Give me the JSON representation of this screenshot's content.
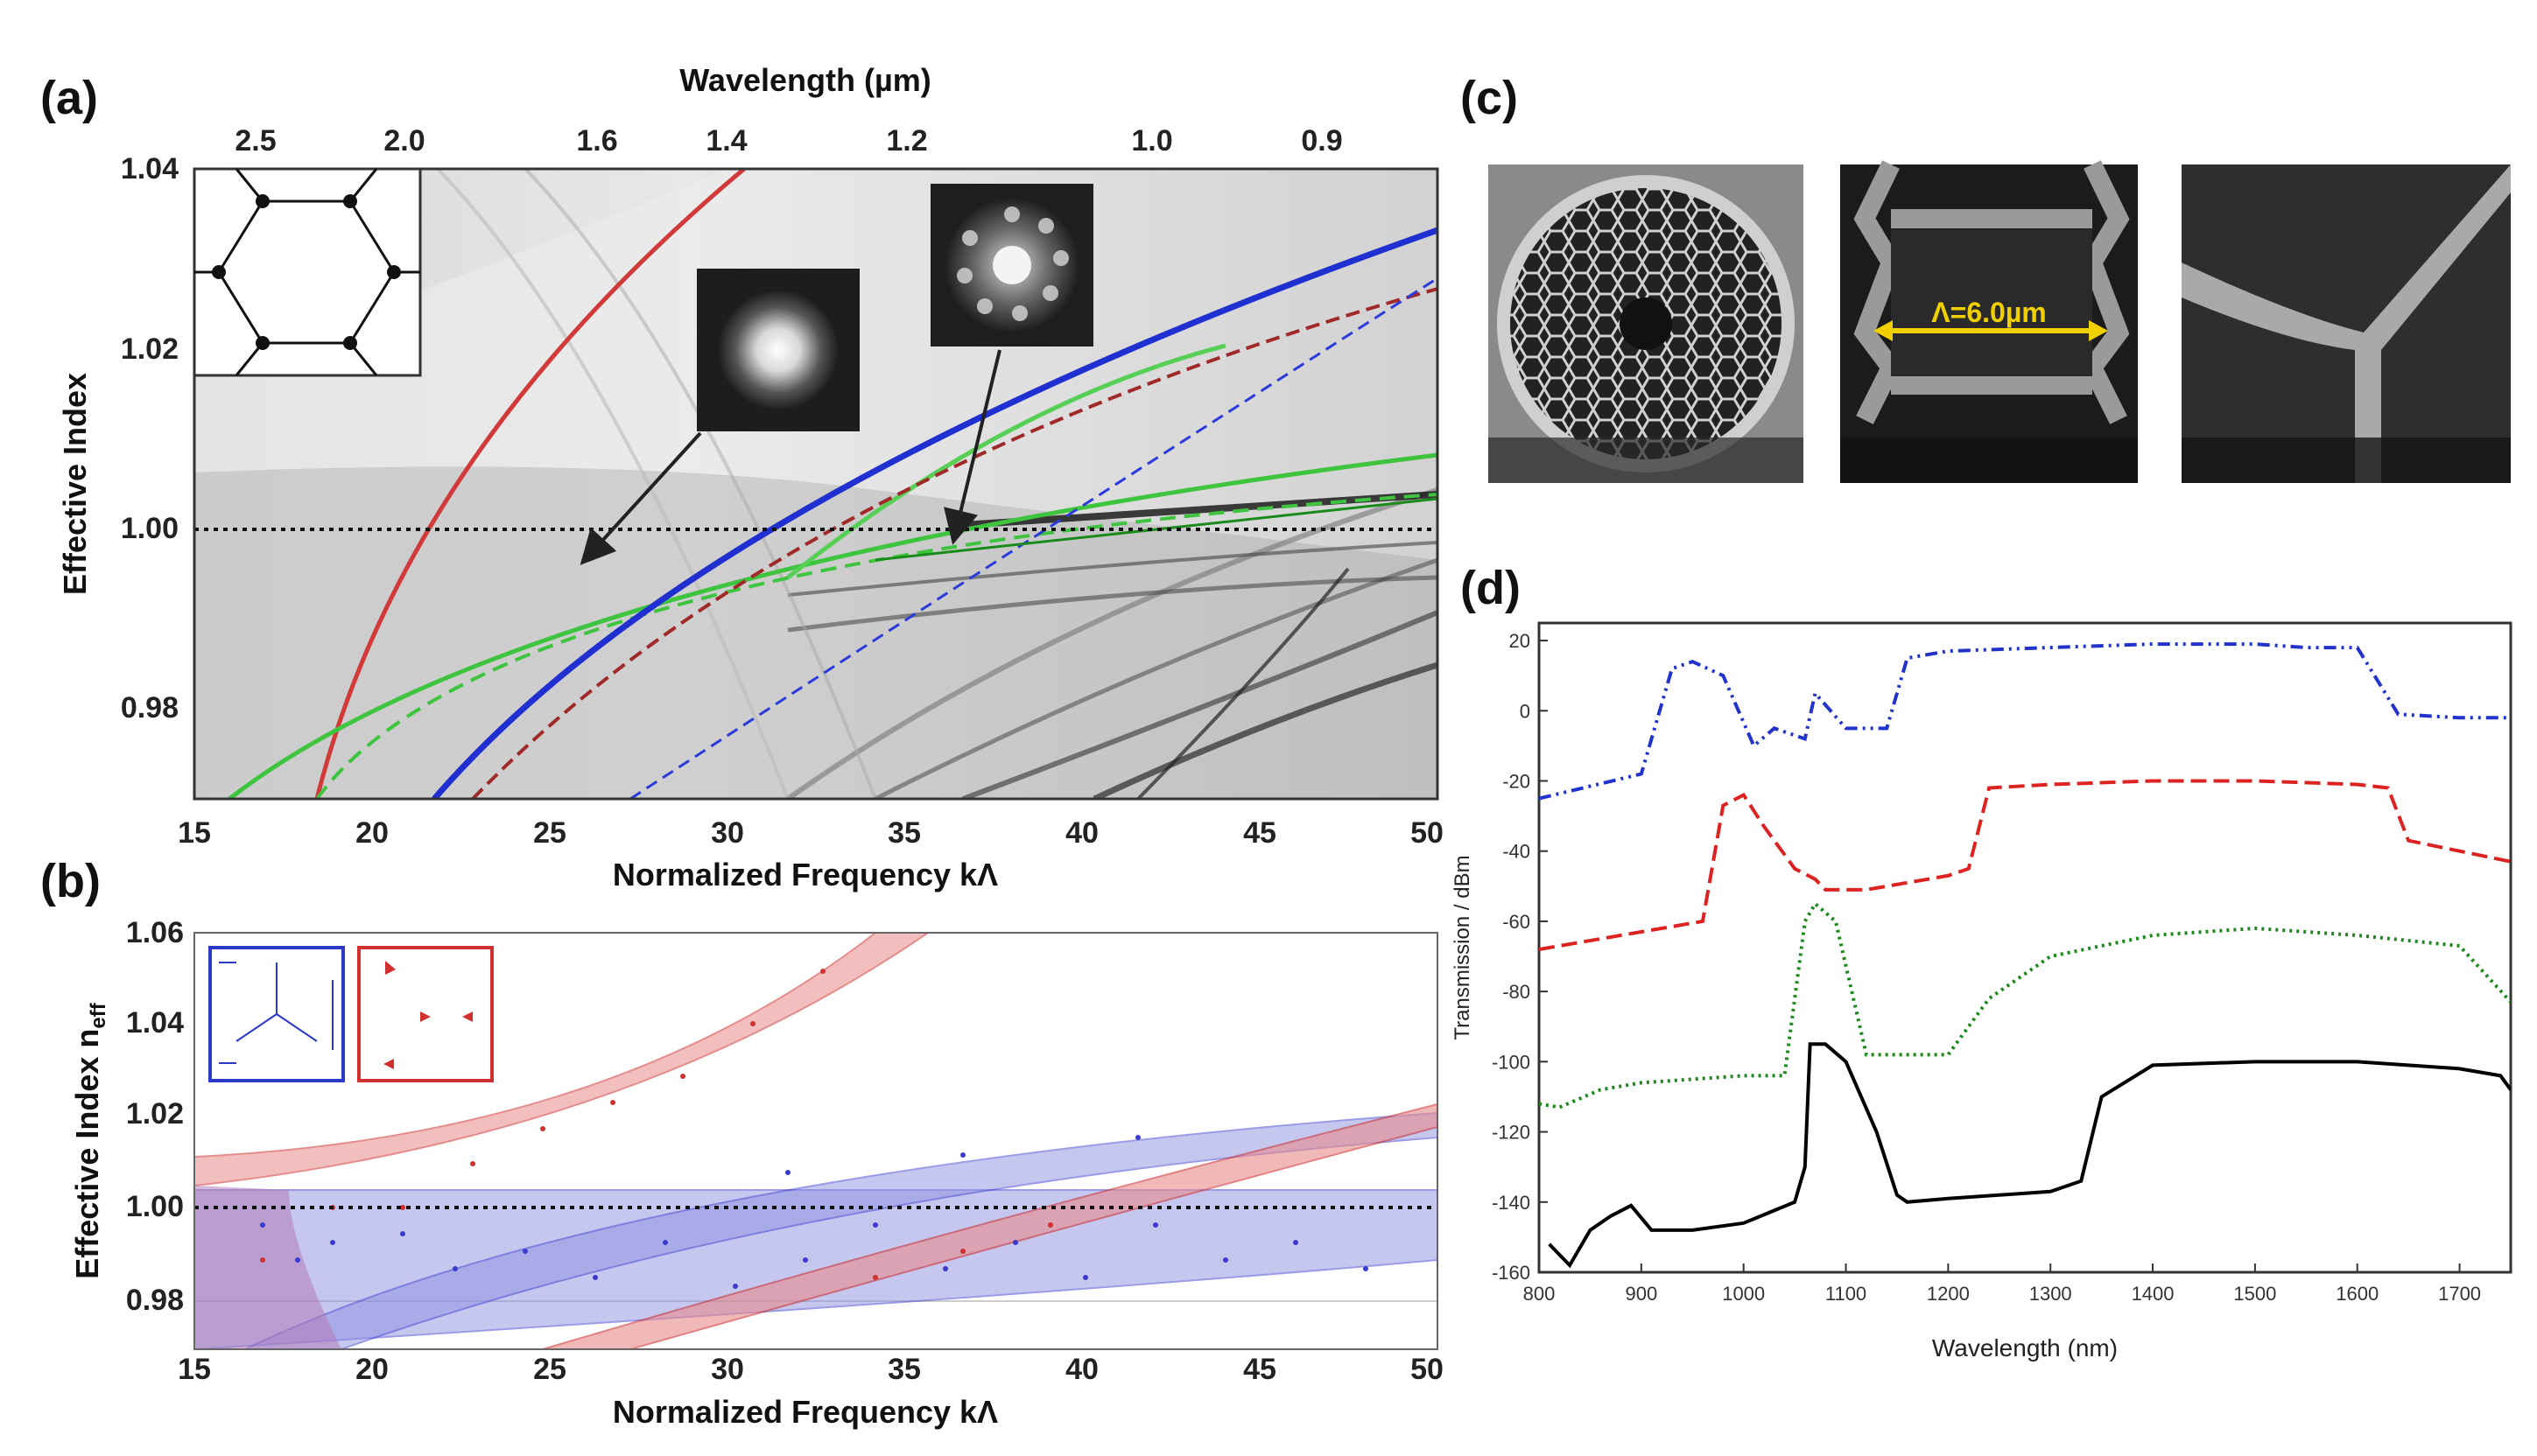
{
  "panels": {
    "a": "(a)",
    "b": "(b)",
    "c": "(c)",
    "d": "(d)"
  },
  "panel_a": {
    "top_axis_label": "Wavelength (µm)",
    "top_ticks": [
      "2.5",
      "2.0",
      "1.6",
      "1.4",
      "1.2",
      "1.0",
      "0.9"
    ],
    "ylabel": "Effective Index",
    "xlabel": "Normalized Frequency kΛ",
    "yticks": [
      "1.04",
      "1.02",
      "1.00",
      "0.98"
    ],
    "xticks": [
      "15",
      "20",
      "25",
      "30",
      "35",
      "40",
      "45",
      "50"
    ]
  },
  "panel_b": {
    "ylabel": "Effective Index n",
    "ylabel_sub": "eff",
    "xlabel": "Normalized Frequency kΛ",
    "yticks": [
      "1.06",
      "1.04",
      "1.02",
      "1.00",
      "0.98"
    ],
    "xticks": [
      "15",
      "20",
      "25",
      "30",
      "35",
      "40",
      "45",
      "50"
    ]
  },
  "panel_c": {
    "scale_label": "Λ=6.0µm"
  },
  "chart_data": [
    {
      "type": "line",
      "title": "(d)",
      "xlabel": "Wavelength (nm)",
      "ylabel": "Transmission / dBm",
      "xlim": [
        800,
        1750
      ],
      "ylim": [
        -160,
        25
      ],
      "xticks": [
        "800",
        "900",
        "1000",
        "1100",
        "1200",
        "1300",
        "1400",
        "1500",
        "1600",
        "1700"
      ],
      "yticks": [
        "20",
        "0",
        "-20",
        "-40",
        "-60",
        "-80",
        "-100",
        "-120",
        "-140",
        "-160"
      ],
      "series": [
        {
          "name": "blue",
          "color": "#2233cc",
          "x": [
            800,
            900,
            930,
            950,
            980,
            1010,
            1030,
            1060,
            1070,
            1100,
            1140,
            1160,
            1200,
            1300,
            1400,
            1500,
            1550,
            1600,
            1640,
            1700,
            1750
          ],
          "y": [
            -25,
            -18,
            12,
            14,
            10,
            -10,
            -5,
            -8,
            5,
            -5,
            -5,
            15,
            17,
            18,
            19,
            19,
            18,
            18,
            -1,
            -2,
            -2
          ]
        },
        {
          "name": "red",
          "color": "#dd2222",
          "x": [
            800,
            960,
            980,
            1000,
            1020,
            1050,
            1070,
            1080,
            1120,
            1200,
            1220,
            1240,
            1300,
            1400,
            1500,
            1600,
            1630,
            1650,
            1700,
            1750
          ],
          "y": [
            -68,
            -60,
            -27,
            -24,
            -33,
            -45,
            -48,
            -51,
            -51,
            -47,
            -45,
            -22,
            -21,
            -20,
            -20,
            -21,
            -22,
            -37,
            -40,
            -43
          ]
        },
        {
          "name": "green",
          "color": "#1a8a1a",
          "x": [
            800,
            820,
            860,
            900,
            1000,
            1040,
            1060,
            1070,
            1090,
            1120,
            1200,
            1240,
            1300,
            1400,
            1500,
            1600,
            1700,
            1750
          ],
          "y": [
            -112,
            -113,
            -108,
            -106,
            -104,
            -104,
            -60,
            -55,
            -60,
            -98,
            -98,
            -82,
            -70,
            -64,
            -62,
            -64,
            -67,
            -83
          ]
        },
        {
          "name": "black",
          "color": "#000000",
          "x": [
            810,
            830,
            850,
            870,
            890,
            910,
            950,
            1000,
            1050,
            1060,
            1065,
            1080,
            1100,
            1130,
            1150,
            1160,
            1200,
            1300,
            1330,
            1350,
            1400,
            1500,
            1600,
            1700,
            1740,
            1750
          ],
          "y": [
            -152,
            -158,
            -148,
            -144,
            -141,
            -148,
            -148,
            -146,
            -140,
            -130,
            -95,
            -95,
            -100,
            -120,
            -138,
            -140,
            -139,
            -137,
            -134,
            -110,
            -101,
            -100,
            -100,
            -102,
            -104,
            -108
          ]
        }
      ]
    }
  ]
}
